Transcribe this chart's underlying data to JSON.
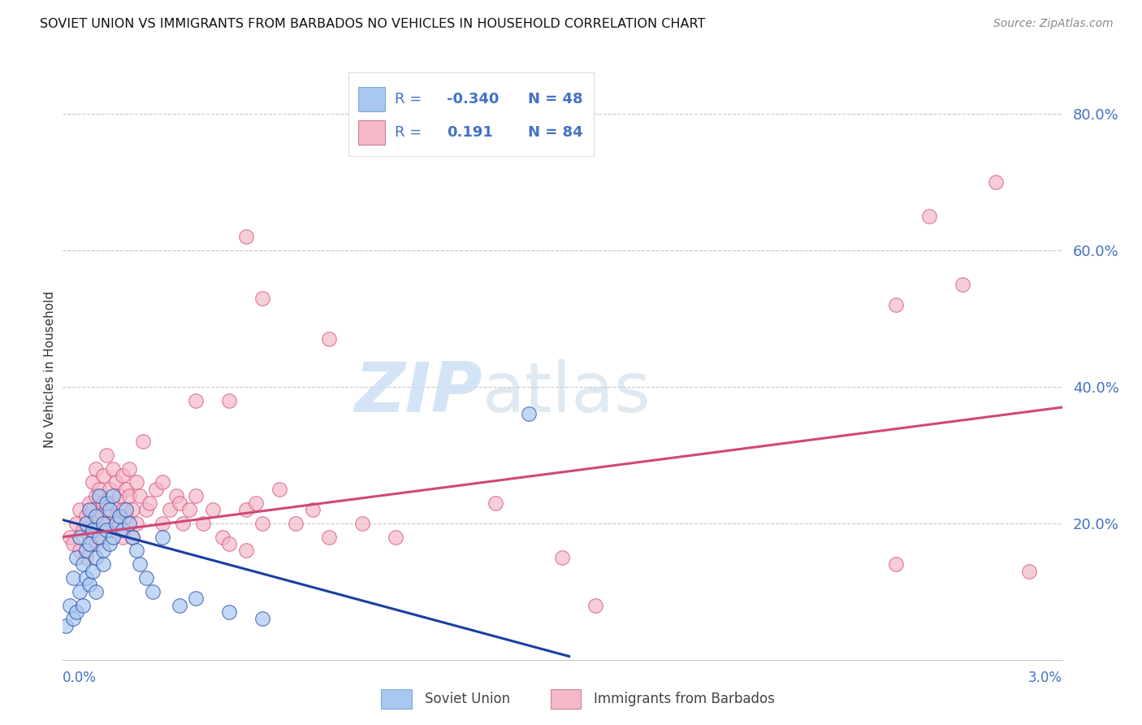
{
  "title": "SOVIET UNION VS IMMIGRANTS FROM BARBADOS NO VEHICLES IN HOUSEHOLD CORRELATION CHART",
  "source": "Source: ZipAtlas.com",
  "ylabel": "No Vehicles in Household",
  "xmin": 0.0,
  "xmax": 3.0,
  "ymin": 0.0,
  "ymax": 85.0,
  "color_blue": "#a8c8f0",
  "color_pink": "#f5b8c8",
  "color_blue_line": "#1a3fa0",
  "color_pink_line": "#d04878",
  "color_text_blue": "#4472C4",
  "color_axis": "#4472C4",
  "color_grid": "#c8c8c8",
  "blue_line_x0": 0.0,
  "blue_line_y0": 20.5,
  "blue_line_x1": 1.52,
  "blue_line_y1": 0.5,
  "pink_line_x0": 0.0,
  "pink_line_y0": 18.0,
  "pink_line_x1": 3.0,
  "pink_line_y1": 37.0,
  "soviet_x": [
    0.01,
    0.02,
    0.03,
    0.03,
    0.04,
    0.04,
    0.05,
    0.05,
    0.06,
    0.06,
    0.07,
    0.07,
    0.07,
    0.08,
    0.08,
    0.08,
    0.09,
    0.09,
    0.1,
    0.1,
    0.1,
    0.11,
    0.11,
    0.12,
    0.12,
    0.12,
    0.13,
    0.13,
    0.14,
    0.14,
    0.15,
    0.15,
    0.16,
    0.17,
    0.18,
    0.19,
    0.2,
    0.21,
    0.22,
    0.23,
    0.25,
    0.27,
    0.3,
    0.35,
    0.4,
    0.5,
    0.6,
    1.4
  ],
  "soviet_y": [
    5,
    8,
    6,
    12,
    7,
    15,
    10,
    18,
    8,
    14,
    12,
    16,
    20,
    11,
    17,
    22,
    13,
    19,
    15,
    21,
    10,
    18,
    24,
    14,
    20,
    16,
    19,
    23,
    17,
    22,
    18,
    24,
    20,
    21,
    19,
    22,
    20,
    18,
    16,
    14,
    12,
    10,
    18,
    8,
    9,
    7,
    6,
    36
  ],
  "barbados_x": [
    0.02,
    0.03,
    0.04,
    0.05,
    0.05,
    0.06,
    0.07,
    0.07,
    0.08,
    0.08,
    0.09,
    0.09,
    0.09,
    0.1,
    0.1,
    0.1,
    0.11,
    0.11,
    0.11,
    0.12,
    0.12,
    0.12,
    0.13,
    0.13,
    0.14,
    0.14,
    0.15,
    0.15,
    0.16,
    0.16,
    0.17,
    0.17,
    0.18,
    0.18,
    0.18,
    0.19,
    0.19,
    0.2,
    0.2,
    0.21,
    0.21,
    0.22,
    0.22,
    0.23,
    0.24,
    0.25,
    0.26,
    0.28,
    0.3,
    0.3,
    0.32,
    0.34,
    0.35,
    0.36,
    0.38,
    0.4,
    0.42,
    0.45,
    0.48,
    0.5,
    0.55,
    0.55,
    0.58,
    0.6,
    0.65,
    0.7,
    0.75,
    0.8,
    0.9,
    1.0,
    1.3,
    1.5,
    1.6,
    2.5,
    2.6,
    2.7,
    2.8,
    2.9,
    0.4,
    0.5,
    0.55,
    0.6,
    0.8,
    2.5
  ],
  "barbados_y": [
    18,
    17,
    20,
    16,
    22,
    19,
    21,
    15,
    23,
    18,
    22,
    26,
    20,
    17,
    24,
    28,
    21,
    25,
    18,
    23,
    27,
    20,
    22,
    30,
    25,
    19,
    23,
    28,
    21,
    26,
    24,
    20,
    27,
    22,
    18,
    25,
    21,
    24,
    28,
    22,
    18,
    26,
    20,
    24,
    32,
    22,
    23,
    25,
    20,
    26,
    22,
    24,
    23,
    20,
    22,
    24,
    20,
    22,
    18,
    17,
    16,
    22,
    23,
    20,
    25,
    20,
    22,
    18,
    20,
    18,
    23,
    15,
    8,
    52,
    65,
    55,
    70,
    13,
    38,
    38,
    62,
    53,
    47,
    14
  ]
}
